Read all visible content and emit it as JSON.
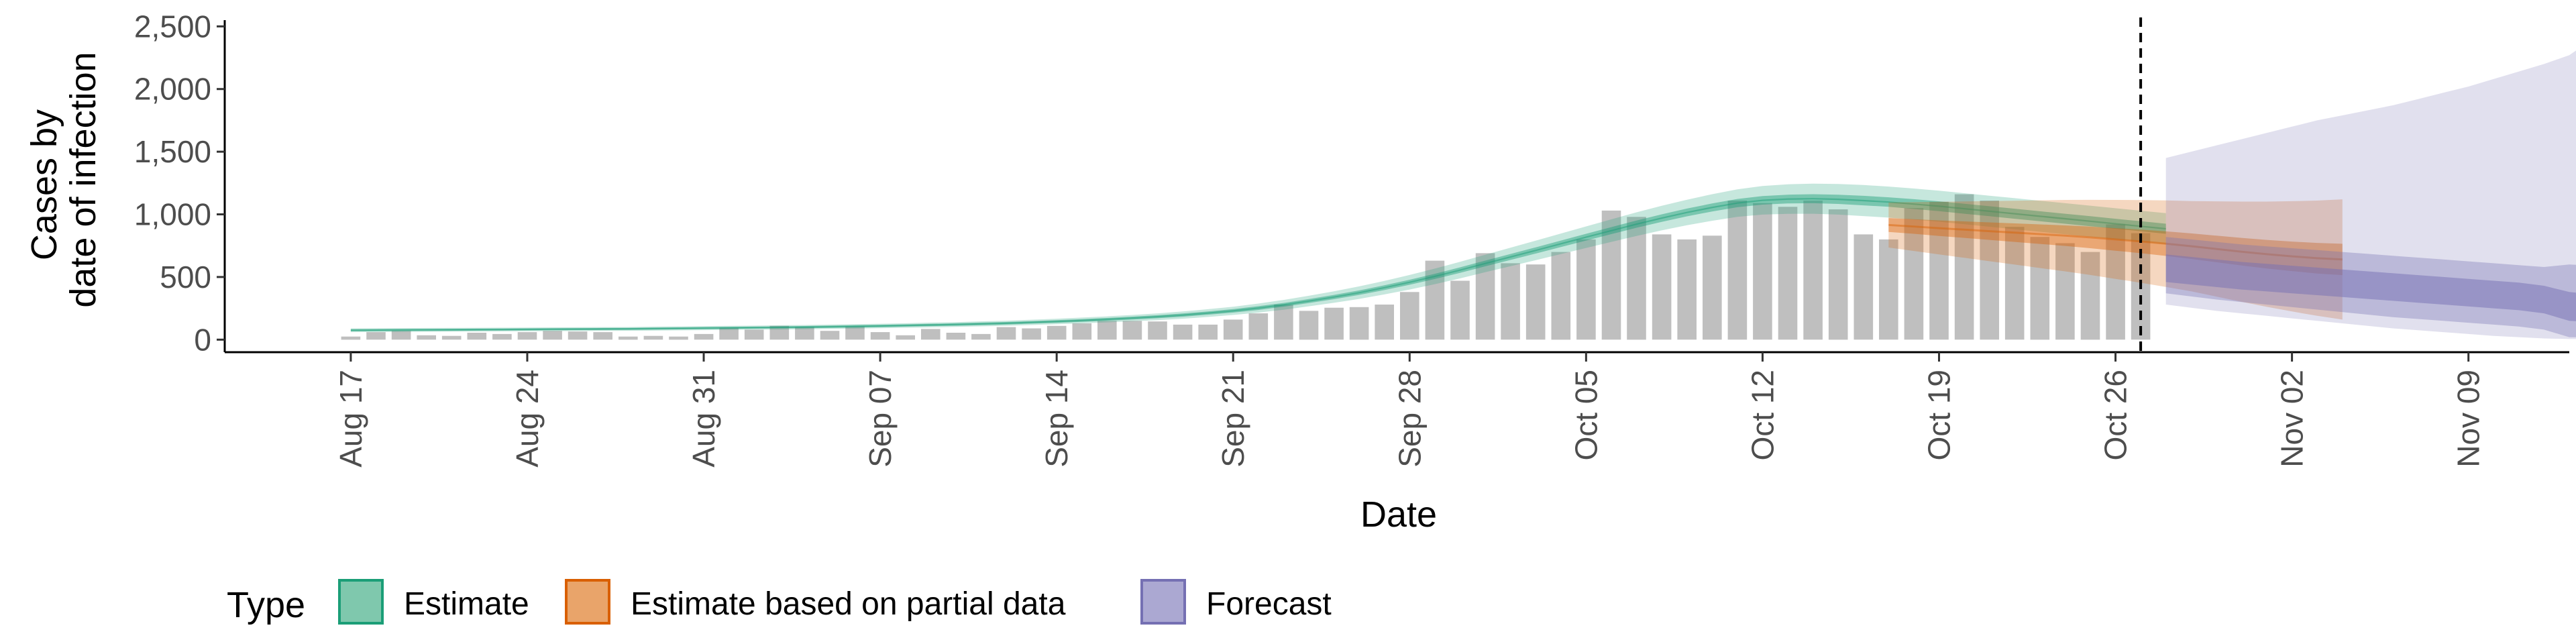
{
  "chart_data": {
    "type": "area",
    "xlabel": "Date",
    "ylabel_lines": [
      "Cases by",
      "date of infection"
    ],
    "yticks": [
      0,
      500,
      1000,
      1500,
      2000,
      2500
    ],
    "ytick_labels": [
      "0",
      "500",
      "1,000",
      "1,500",
      "2,000",
      "2,500"
    ],
    "ylim": [
      -100,
      2550
    ],
    "xlim": [
      "2020-08-12",
      "2020-11-13"
    ],
    "xticks": [
      "2020-08-17",
      "2020-08-24",
      "2020-08-31",
      "2020-09-07",
      "2020-09-14",
      "2020-09-21",
      "2020-09-28",
      "2020-10-05",
      "2020-10-12",
      "2020-10-19",
      "2020-10-26",
      "2020-11-02",
      "2020-11-09"
    ],
    "xtick_labels": [
      "Aug 17",
      "Aug 24",
      "Aug 31",
      "Sep 07",
      "Sep 14",
      "Sep 21",
      "Sep 28",
      "Oct 05",
      "Oct 12",
      "Oct 19",
      "Oct 26",
      "Nov 02",
      "Nov 09"
    ],
    "grid": false,
    "vline_date": "2020-10-27",
    "legend": {
      "title": "Type",
      "placement": "bottom",
      "items": [
        {
          "label": "Estimate",
          "fill": "#7fc8ad",
          "stroke": "#1b9e77"
        },
        {
          "label": "Estimate based on partial data",
          "fill": "#e9a46a",
          "stroke": "#d95f02"
        },
        {
          "label": "Forecast",
          "fill": "#aba8d2",
          "stroke": "#7570b3"
        }
      ]
    },
    "observed_cases": {
      "start": "2020-08-17",
      "color": "#bfbfbf",
      "values": [
        25,
        60,
        70,
        35,
        30,
        55,
        45,
        60,
        70,
        65,
        60,
        25,
        30,
        25,
        45,
        95,
        80,
        110,
        100,
        70,
        105,
        60,
        35,
        85,
        55,
        45,
        100,
        90,
        110,
        130,
        150,
        150,
        145,
        120,
        120,
        160,
        210,
        280,
        230,
        255,
        260,
        280,
        380,
        630,
        470,
        690,
        610,
        600,
        700,
        800,
        1030,
        980,
        840,
        800,
        830,
        1110,
        1090,
        1060,
        1110,
        1040,
        840,
        800,
        1050,
        1100,
        1160,
        1110,
        900,
        820,
        770,
        700,
        920,
        850
      ]
    },
    "series": [
      {
        "name": "Estimate",
        "color": "#1b9e77",
        "start": "2020-08-17",
        "median": [
          75,
          76,
          77,
          78,
          79,
          80,
          81,
          82,
          83,
          84,
          85,
          86,
          88,
          90,
          92,
          94,
          96,
          98,
          100,
          103,
          106,
          109,
          113,
          117,
          121,
          126,
          131,
          138,
          145,
          153,
          162,
          172,
          183,
          196,
          212,
          230,
          252,
          278,
          308,
          340,
          375,
          415,
          458,
          505,
          555,
          608,
          660,
          712,
          765,
          818,
          870,
          922,
          970,
          1015,
          1055,
          1090,
          1112,
          1122,
          1125,
          1120,
          1110,
          1098,
          1082,
          1065,
          1045,
          1025,
          1005,
          985,
          965,
          945,
          925,
          905,
          885
        ],
        "inner_halfwidth": [
          8,
          8,
          8,
          8,
          8,
          8,
          8,
          8,
          8,
          8,
          8,
          8,
          8,
          8,
          8,
          8,
          8,
          8,
          9,
          9,
          9,
          9,
          9,
          9,
          10,
          10,
          10,
          10,
          11,
          11,
          11,
          12,
          12,
          13,
          13,
          14,
          15,
          15,
          16,
          17,
          18,
          19,
          20,
          21,
          22,
          23,
          24,
          25,
          26,
          27,
          28,
          29,
          30,
          31,
          32,
          33,
          34,
          35,
          36,
          37,
          38,
          38,
          39,
          39,
          40,
          40,
          40,
          40,
          40,
          40,
          40,
          40,
          40
        ],
        "outer_halfwidth": [
          15,
          15,
          15,
          15,
          15,
          15,
          15,
          15,
          15,
          15,
          15,
          15,
          16,
          16,
          16,
          16,
          16,
          17,
          17,
          17,
          18,
          18,
          18,
          19,
          19,
          20,
          20,
          21,
          22,
          23,
          24,
          25,
          27,
          29,
          31,
          33,
          36,
          39,
          42,
          46,
          50,
          54,
          58,
          62,
          66,
          70,
          74,
          78,
          82,
          86,
          90,
          94,
          98,
          102,
          106,
          110,
          114,
          118,
          120,
          122,
          124,
          124,
          124,
          124,
          124,
          124,
          124,
          124,
          124,
          124,
          124,
          124,
          124
        ]
      },
      {
        "name": "Estimate based on partial data",
        "color": "#d95f02",
        "start": "2020-10-17",
        "median": [
          915,
          903,
          890,
          878,
          866,
          854,
          842,
          830,
          816,
          800,
          784,
          766,
          746,
          724,
          702,
          682,
          665,
          650,
          640
        ],
        "inner_halfwidth": [
          55,
          58,
          62,
          66,
          70,
          74,
          78,
          82,
          86,
          90,
          94,
          98,
          102,
          106,
          110,
          114,
          118,
          122,
          125
        ],
        "outer_halfwidth": [
          180,
          195,
          210,
          225,
          240,
          255,
          270,
          285,
          300,
          315,
          330,
          345,
          360,
          380,
          400,
          420,
          440,
          460,
          480
        ]
      },
      {
        "name": "Forecast",
        "color": "#7570b3",
        "start": "2020-10-28",
        "median": [
          560,
          540,
          520,
          500,
          485,
          470,
          455,
          440,
          425,
          410,
          395,
          380,
          365,
          350,
          335,
          310,
          260,
          240
        ],
        "inner_lo": [
          460,
          440,
          420,
          400,
          385,
          370,
          355,
          340,
          325,
          310,
          295,
          280,
          265,
          250,
          235,
          210,
          150,
          140
        ],
        "inner_hi": [
          680,
          660,
          640,
          620,
          605,
          590,
          575,
          560,
          545,
          530,
          515,
          500,
          485,
          470,
          455,
          430,
          380,
          360
        ],
        "mid_lo": [
          370,
          345,
          320,
          300,
          280,
          260,
          240,
          220,
          200,
          180,
          165,
          150,
          135,
          120,
          105,
          80,
          20,
          20
        ],
        "mid_hi": [
          820,
          800,
          780,
          760,
          745,
          730,
          715,
          700,
          685,
          670,
          655,
          640,
          625,
          610,
          595,
          580,
          600,
          590
        ],
        "outer_lo": [
          280,
          255,
          230,
          210,
          190,
          170,
          150,
          130,
          110,
          90,
          75,
          60,
          45,
          30,
          20,
          10,
          5,
          5
        ],
        "outer_hi": [
          1450,
          1500,
          1550,
          1600,
          1650,
          1700,
          1750,
          1790,
          1830,
          1870,
          1920,
          1970,
          2020,
          2080,
          2140,
          2200,
          2270,
          2410
        ]
      }
    ]
  }
}
